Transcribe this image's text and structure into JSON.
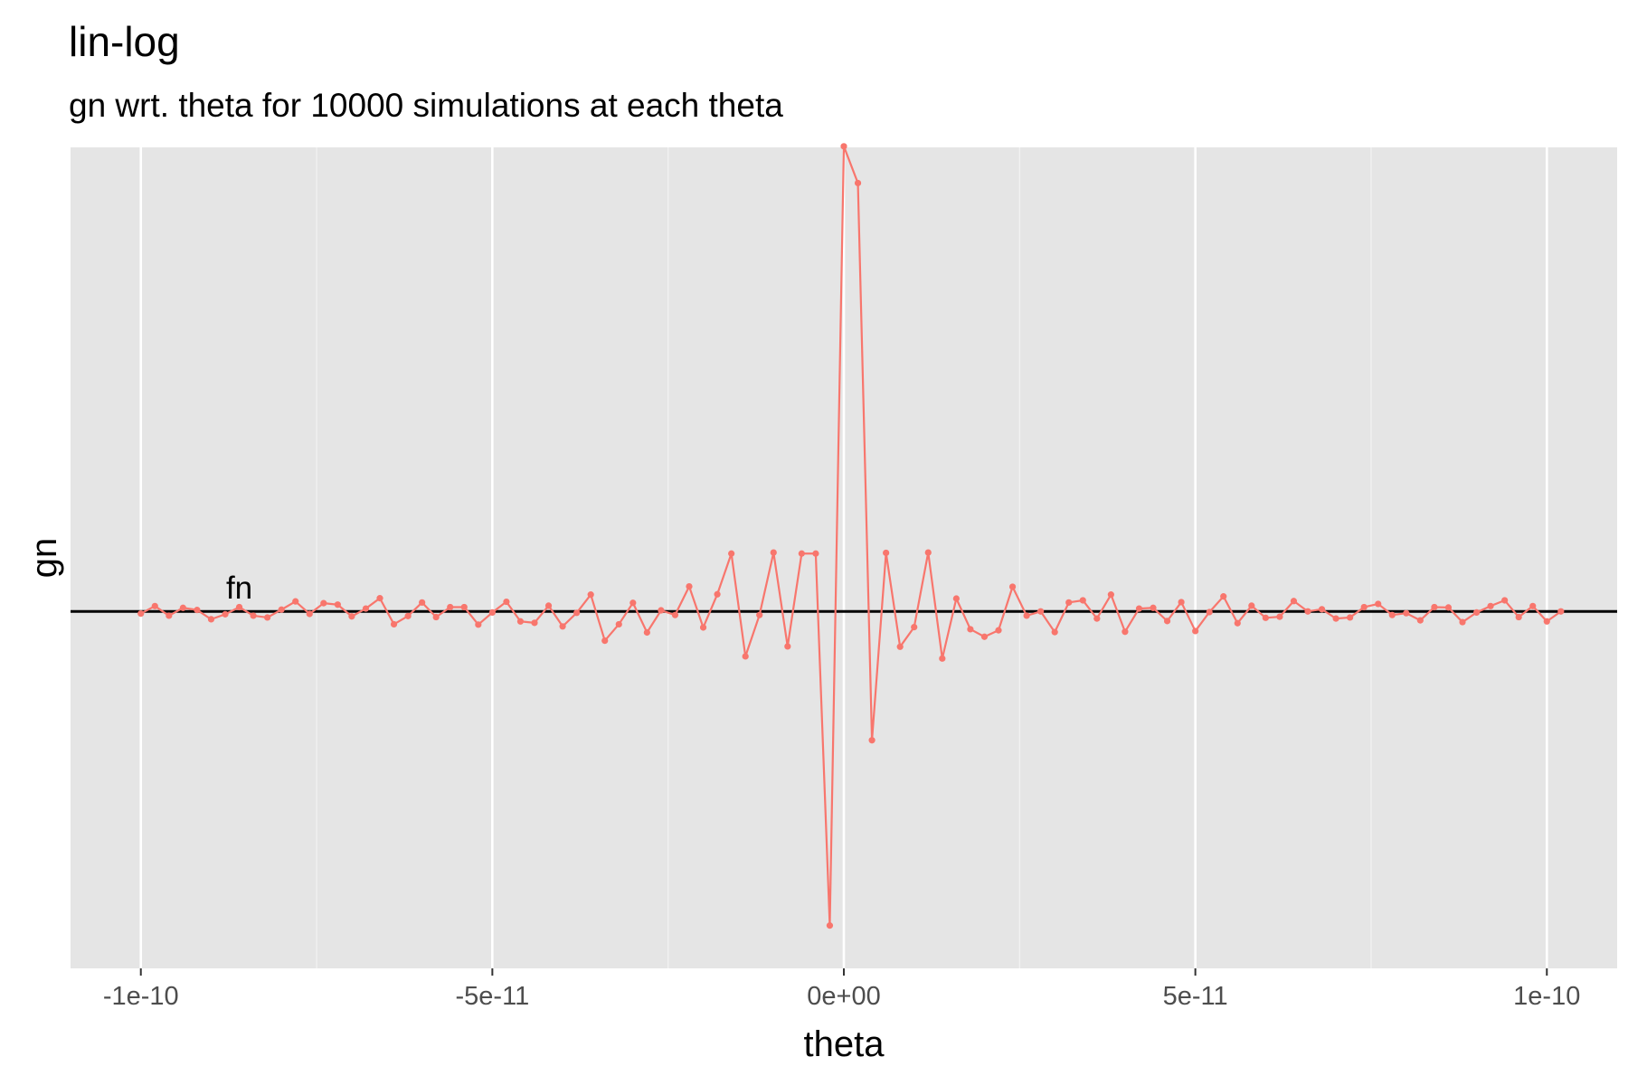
{
  "chart_data": {
    "type": "line",
    "title": "lin-log",
    "subtitle": "gn wrt. theta for 10000 simulations at each theta",
    "xlabel": "theta",
    "ylabel": "gn",
    "xlim": [
      -1.1e-10,
      1.1e-10
    ],
    "ylim": [
      -1.0,
      1.3
    ],
    "x_ticks": [
      -1e-10,
      -5e-11,
      0,
      5e-11,
      1e-10
    ],
    "x_tick_labels": [
      "-1e-10",
      "-5e-11",
      "0e+00",
      "5e-11",
      "1e-10"
    ],
    "grid": true,
    "legend": "none",
    "reference_line": {
      "y": 0,
      "label": "fn",
      "label_x": -8.6e-11
    },
    "series": [
      {
        "color": "#F8766D",
        "x_start": -1e-10,
        "x_step": 2e-12,
        "values": [
          -0.006,
          0.015,
          -0.012,
          0.01,
          0.004,
          -0.022,
          -0.008,
          0.012,
          -0.012,
          -0.017,
          0.005,
          0.028,
          -0.007,
          0.023,
          0.019,
          -0.014,
          0.008,
          0.037,
          -0.036,
          -0.013,
          0.025,
          -0.016,
          0.012,
          0.012,
          -0.037,
          -0.003,
          0.027,
          -0.028,
          -0.032,
          0.016,
          -0.042,
          -0.004,
          0.047,
          -0.082,
          -0.036,
          0.024,
          -0.059,
          0.003,
          -0.01,
          0.07,
          -0.045,
          0.048,
          0.162,
          -0.126,
          -0.01,
          0.165,
          -0.098,
          0.162,
          0.162,
          -0.88,
          1.303,
          1.2,
          -0.361,
          0.164,
          -0.099,
          -0.044,
          0.165,
          -0.132,
          0.036,
          -0.05,
          -0.071,
          -0.053,
          0.069,
          -0.012,
          0.0,
          -0.058,
          0.025,
          0.031,
          -0.02,
          0.047,
          -0.057,
          0.008,
          0.01,
          -0.027,
          0.026,
          -0.055,
          -0.002,
          0.042,
          -0.033,
          0.016,
          -0.018,
          -0.015,
          0.029,
          0.0,
          0.006,
          -0.02,
          -0.017,
          0.012,
          0.021,
          -0.01,
          -0.005,
          -0.025,
          0.012,
          0.011,
          -0.03,
          -0.003,
          0.015,
          0.031,
          -0.016,
          0.015,
          -0.028,
          0.0
        ]
      }
    ]
  }
}
